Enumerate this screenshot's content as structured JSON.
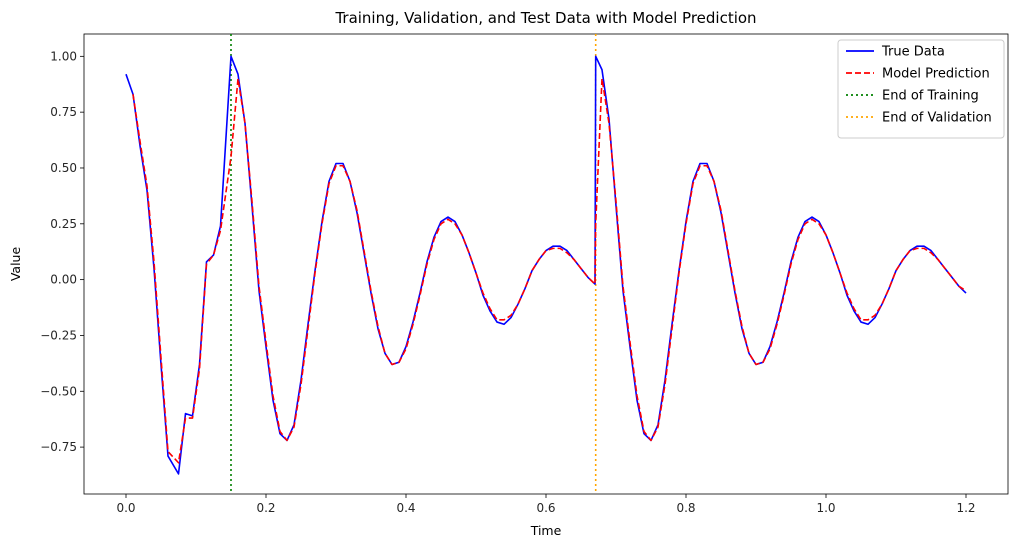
{
  "chart_data": {
    "type": "line",
    "title": "Training, Validation, and Test Data with Model Prediction",
    "xlabel": "Time",
    "ylabel": "Value",
    "xlim": [
      -0.06,
      1.26
    ],
    "ylim": [
      -0.96,
      1.1
    ],
    "xticks": [
      0.0,
      0.2,
      0.4,
      0.6,
      0.8,
      1.0,
      1.2
    ],
    "xtick_labels": [
      "0.0",
      "0.2",
      "0.4",
      "0.6",
      "0.8",
      "1.0",
      "1.2"
    ],
    "yticks": [
      -0.75,
      -0.5,
      -0.25,
      0.0,
      0.25,
      0.5,
      0.75,
      1.0
    ],
    "ytick_labels": [
      "−0.75",
      "−0.50",
      "−0.25",
      "0.00",
      "0.25",
      "0.50",
      "0.75",
      "1.00"
    ],
    "grid": false,
    "legend_position": "top-right",
    "series": [
      {
        "name": "True Data",
        "color": "#0000ff",
        "style": "solid",
        "x": [
          0.0,
          0.01,
          0.02,
          0.03,
          0.04,
          0.05,
          0.06,
          0.075,
          0.085,
          0.095,
          0.105,
          0.115,
          0.125,
          0.135,
          0.15,
          0.16,
          0.17,
          0.18,
          0.19,
          0.2,
          0.21,
          0.22,
          0.23,
          0.24,
          0.25,
          0.26,
          0.27,
          0.28,
          0.29,
          0.3,
          0.31,
          0.32,
          0.33,
          0.34,
          0.35,
          0.36,
          0.37,
          0.38,
          0.39,
          0.4,
          0.41,
          0.42,
          0.43,
          0.44,
          0.45,
          0.46,
          0.47,
          0.48,
          0.49,
          0.5,
          0.51,
          0.52,
          0.53,
          0.54,
          0.55,
          0.56,
          0.57,
          0.58,
          0.59,
          0.6,
          0.61,
          0.62,
          0.63,
          0.64,
          0.65,
          0.66,
          0.67,
          0.671,
          0.68,
          0.69,
          0.7,
          0.71,
          0.72,
          0.73,
          0.74,
          0.75,
          0.76,
          0.77,
          0.78,
          0.79,
          0.8,
          0.81,
          0.82,
          0.83,
          0.84,
          0.85,
          0.86,
          0.87,
          0.88,
          0.89,
          0.9,
          0.91,
          0.92,
          0.93,
          0.94,
          0.95,
          0.96,
          0.97,
          0.98,
          0.99,
          1.0,
          1.01,
          1.02,
          1.03,
          1.04,
          1.05,
          1.06,
          1.07,
          1.08,
          1.09,
          1.1,
          1.11,
          1.12,
          1.13,
          1.14,
          1.15,
          1.16,
          1.17,
          1.18,
          1.19,
          1.2
        ],
        "y": [
          0.92,
          0.83,
          0.6,
          0.4,
          0.05,
          -0.38,
          -0.79,
          -0.87,
          -0.6,
          -0.61,
          -0.38,
          0.08,
          0.11,
          0.24,
          1.0,
          0.92,
          0.7,
          0.33,
          -0.05,
          -0.3,
          -0.54,
          -0.69,
          -0.72,
          -0.65,
          -0.45,
          -0.2,
          0.04,
          0.26,
          0.44,
          0.52,
          0.52,
          0.44,
          0.3,
          0.12,
          -0.06,
          -0.22,
          -0.33,
          -0.38,
          -0.37,
          -0.3,
          -0.19,
          -0.06,
          0.08,
          0.19,
          0.26,
          0.28,
          0.26,
          0.2,
          0.12,
          0.03,
          -0.07,
          -0.14,
          -0.19,
          -0.2,
          -0.17,
          -0.11,
          -0.04,
          0.04,
          0.09,
          0.13,
          0.15,
          0.15,
          0.13,
          0.09,
          0.05,
          0.01,
          -0.02,
          1.0,
          0.94,
          0.72,
          0.33,
          -0.05,
          -0.3,
          -0.54,
          -0.69,
          -0.72,
          -0.65,
          -0.45,
          -0.2,
          0.04,
          0.26,
          0.44,
          0.52,
          0.52,
          0.44,
          0.3,
          0.12,
          -0.06,
          -0.22,
          -0.33,
          -0.38,
          -0.37,
          -0.3,
          -0.19,
          -0.06,
          0.08,
          0.19,
          0.26,
          0.28,
          0.26,
          0.2,
          0.12,
          0.03,
          -0.07,
          -0.14,
          -0.19,
          -0.2,
          -0.17,
          -0.11,
          -0.04,
          0.04,
          0.09,
          0.13,
          0.15,
          0.15,
          0.13,
          0.09,
          0.05,
          0.01,
          -0.03,
          -0.06
        ]
      },
      {
        "name": "Model Prediction",
        "color": "#ff0000",
        "style": "dashed",
        "x": [
          0.01,
          0.02,
          0.03,
          0.04,
          0.05,
          0.06,
          0.075,
          0.085,
          0.095,
          0.105,
          0.115,
          0.125,
          0.135,
          0.15,
          0.16,
          0.17,
          0.18,
          0.19,
          0.2,
          0.21,
          0.22,
          0.23,
          0.24,
          0.25,
          0.26,
          0.27,
          0.28,
          0.29,
          0.3,
          0.31,
          0.32,
          0.33,
          0.34,
          0.35,
          0.36,
          0.37,
          0.38,
          0.39,
          0.4,
          0.41,
          0.42,
          0.43,
          0.44,
          0.45,
          0.46,
          0.47,
          0.48,
          0.49,
          0.5,
          0.51,
          0.52,
          0.53,
          0.54,
          0.55,
          0.56,
          0.57,
          0.58,
          0.59,
          0.6,
          0.61,
          0.62,
          0.63,
          0.64,
          0.65,
          0.66,
          0.67,
          0.671,
          0.68,
          0.69,
          0.7,
          0.71,
          0.72,
          0.73,
          0.74,
          0.75,
          0.76,
          0.77,
          0.78,
          0.79,
          0.8,
          0.81,
          0.82,
          0.83,
          0.84,
          0.85,
          0.86,
          0.87,
          0.88,
          0.89,
          0.9,
          0.91,
          0.92,
          0.93,
          0.94,
          0.95,
          0.96,
          0.97,
          0.98,
          0.99,
          1.0,
          1.01,
          1.02,
          1.03,
          1.04,
          1.05,
          1.06,
          1.07,
          1.08,
          1.09,
          1.1,
          1.11,
          1.12,
          1.13,
          1.14,
          1.15,
          1.16,
          1.17,
          1.18,
          1.19,
          1.2
        ],
        "y": [
          0.83,
          0.62,
          0.42,
          0.08,
          -0.35,
          -0.77,
          -0.82,
          -0.62,
          -0.62,
          -0.4,
          0.07,
          0.11,
          0.22,
          0.55,
          0.9,
          0.7,
          0.35,
          -0.03,
          -0.28,
          -0.52,
          -0.68,
          -0.72,
          -0.66,
          -0.47,
          -0.22,
          0.03,
          0.25,
          0.43,
          0.51,
          0.51,
          0.44,
          0.31,
          0.13,
          -0.05,
          -0.21,
          -0.33,
          -0.38,
          -0.37,
          -0.31,
          -0.2,
          -0.07,
          0.07,
          0.18,
          0.25,
          0.27,
          0.25,
          0.2,
          0.12,
          0.03,
          -0.06,
          -0.13,
          -0.18,
          -0.18,
          -0.16,
          -0.11,
          -0.04,
          0.04,
          0.09,
          0.13,
          0.14,
          0.14,
          0.12,
          0.09,
          0.05,
          0.01,
          -0.02,
          0.25,
          0.9,
          0.7,
          0.35,
          -0.03,
          -0.28,
          -0.52,
          -0.68,
          -0.72,
          -0.66,
          -0.47,
          -0.22,
          0.03,
          0.25,
          0.43,
          0.51,
          0.51,
          0.44,
          0.31,
          0.13,
          -0.05,
          -0.21,
          -0.33,
          -0.38,
          -0.37,
          -0.31,
          -0.2,
          -0.07,
          0.07,
          0.18,
          0.25,
          0.27,
          0.25,
          0.2,
          0.12,
          0.03,
          -0.06,
          -0.13,
          -0.18,
          -0.18,
          -0.16,
          -0.11,
          -0.04,
          0.04,
          0.09,
          0.13,
          0.14,
          0.14,
          0.12,
          0.09,
          0.05,
          0.01,
          -0.03,
          -0.05
        ]
      }
    ],
    "vlines": [
      {
        "name": "End of Training",
        "x": 0.15,
        "color": "#008000",
        "style": "dotted"
      },
      {
        "name": "End of Validation",
        "x": 0.671,
        "color": "#ffa500",
        "style": "dotted"
      }
    ]
  }
}
